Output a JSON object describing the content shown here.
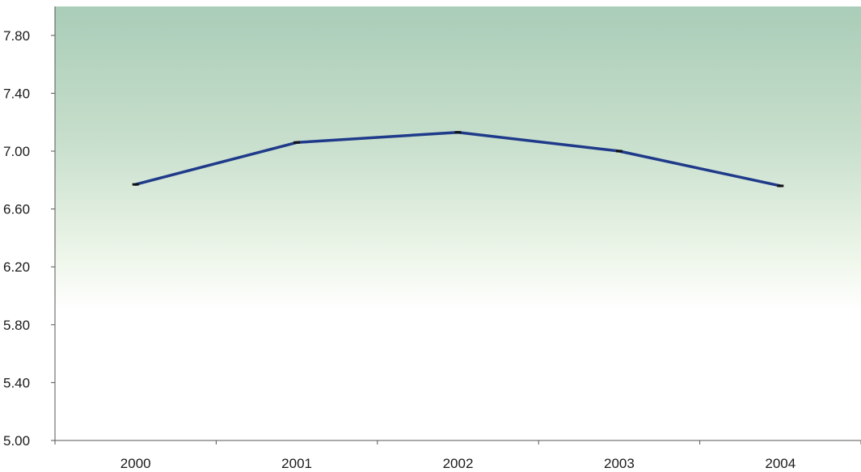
{
  "chart_data": {
    "type": "line",
    "title": "",
    "xlabel": "",
    "ylabel": "",
    "categories": [
      "2000",
      "2001",
      "2002",
      "2003",
      "2004"
    ],
    "series": [
      {
        "values": [
          6.77,
          7.06,
          7.13,
          7.0,
          6.76
        ],
        "color": "#1f3a8a"
      }
    ],
    "ylim": [
      5.0,
      8.0
    ],
    "yticks": [
      "5.00",
      "5.40",
      "5.80",
      "6.20",
      "6.60",
      "7.00",
      "7.40",
      "7.80"
    ],
    "grid": false,
    "legend": "none",
    "plot_background": "gradient: #a8cdb5 top to #ffffff at ~45% height"
  }
}
